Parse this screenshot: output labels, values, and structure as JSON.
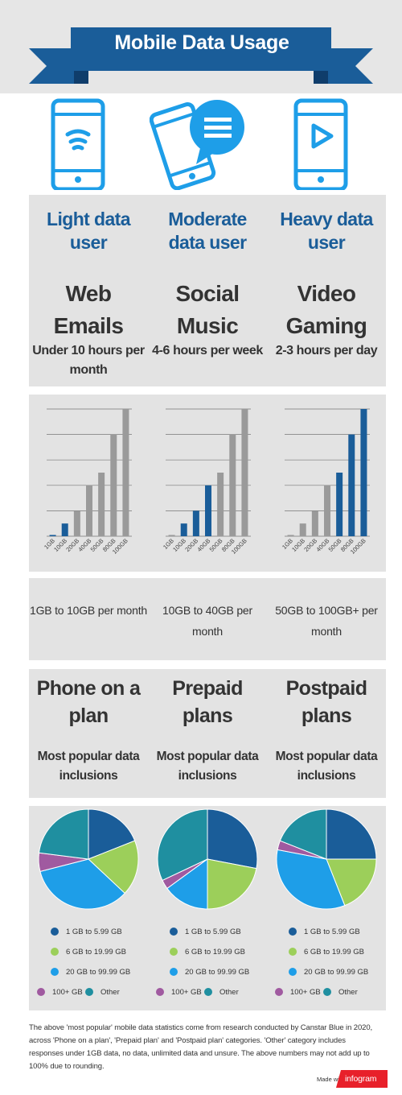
{
  "title": "Mobile Data Usage",
  "colors": {
    "blue": "#1a5d99",
    "bright_blue": "#1e9ee8",
    "gray_bar": "#9a9a9a",
    "pie_dark_blue": "#1a5d99",
    "pie_green": "#9ccf5a",
    "pie_light_blue": "#1e9ee8",
    "pie_purple": "#a05aa0",
    "pie_teal": "#1f8fa0"
  },
  "columns": [
    {
      "icon": "wifi-phone-icon",
      "user_type": "Light data user",
      "activities": [
        "Web",
        "Emails"
      ],
      "usage_time": "Under 10 hours per month",
      "range_text": "1GB to 10GB per month",
      "plan_title": "Phone on a plan",
      "plan_subtitle": "Most popular data inclusions"
    },
    {
      "icon": "chat-phone-icon",
      "user_type": "Moderate data user",
      "activities": [
        "Social",
        "Music"
      ],
      "usage_time": "4-6 hours per week",
      "range_text": "10GB to 40GB per month",
      "plan_title": "Prepaid plans",
      "plan_subtitle": "Most popular data inclusions"
    },
    {
      "icon": "play-phone-icon",
      "user_type": "Heavy data user",
      "activities": [
        "Video",
        "Gaming"
      ],
      "usage_time": "2-3 hours per day",
      "range_text": "50GB to 100GB+ per month",
      "plan_title": "Postpaid plans",
      "plan_subtitle": "Most popular data inclusions"
    }
  ],
  "chart_data": [
    {
      "type": "bar",
      "categories": [
        "1GB",
        "10GB",
        "20GB",
        "40GB",
        "50GB",
        "80GB",
        "100GB"
      ],
      "values": [
        1,
        10,
        20,
        40,
        50,
        80,
        100
      ],
      "highlighted": [
        true,
        true,
        false,
        false,
        false,
        false,
        false
      ],
      "ylim": [
        0,
        100
      ],
      "grid": true
    },
    {
      "type": "bar",
      "categories": [
        "1GB",
        "10GB",
        "20GB",
        "40GB",
        "50GB",
        "80GB",
        "100GB"
      ],
      "values": [
        1,
        10,
        20,
        40,
        50,
        80,
        100
      ],
      "highlighted": [
        false,
        true,
        true,
        true,
        false,
        false,
        false
      ],
      "ylim": [
        0,
        100
      ],
      "grid": true
    },
    {
      "type": "bar",
      "categories": [
        "1GB",
        "10GB",
        "20GB",
        "40GB",
        "50GB",
        "80GB",
        "100GB"
      ],
      "values": [
        1,
        10,
        20,
        40,
        50,
        80,
        100
      ],
      "highlighted": [
        false,
        false,
        false,
        false,
        true,
        true,
        true
      ],
      "ylim": [
        0,
        100
      ],
      "grid": true
    },
    {
      "type": "pie",
      "labels": [
        "1 GB to 5.99 GB",
        "6 GB to 19.99 GB",
        "20 GB to 99.99 GB",
        "100+ GB",
        "Other"
      ],
      "values": [
        19,
        18,
        34,
        6,
        23
      ]
    },
    {
      "type": "pie",
      "labels": [
        "1 GB to 5.99 GB",
        "6 GB to 19.99 GB",
        "20 GB to 99.99 GB",
        "100+ GB",
        "Other"
      ],
      "values": [
        28,
        22,
        15,
        3,
        32
      ]
    },
    {
      "type": "pie",
      "labels": [
        "1 GB to 5.99 GB",
        "6 GB to 19.99 GB",
        "20 GB to 99.99 GB",
        "100+ GB",
        "Other"
      ],
      "values": [
        25,
        19,
        34,
        3,
        19
      ]
    }
  ],
  "legend": {
    "items": [
      {
        "label": "1 GB to 5.99 GB",
        "color": "#1a5d99"
      },
      {
        "label": "6 GB to 19.99 GB",
        "color": "#9ccf5a"
      },
      {
        "label": "20 GB to 99.99 GB",
        "color": "#1e9ee8"
      },
      {
        "label": "100+ GB",
        "color": "#a05aa0"
      },
      {
        "label": "Other",
        "color": "#1f8fa0"
      }
    ]
  },
  "footnote": "The above 'most popular' mobile data statistics come from research conducted by Canstar Blue in 2020, across 'Phone on a plan', 'Prepaid plan' and 'Postpaid plan' categories. 'Other' category includes responses under 1GB data, no data, unlimited data and unsure. The above numbers may not add up to 100% due to rounding.",
  "branding": {
    "made_with": "Made with",
    "logo_text": "infogram",
    "logo_color": "#e8202a"
  }
}
